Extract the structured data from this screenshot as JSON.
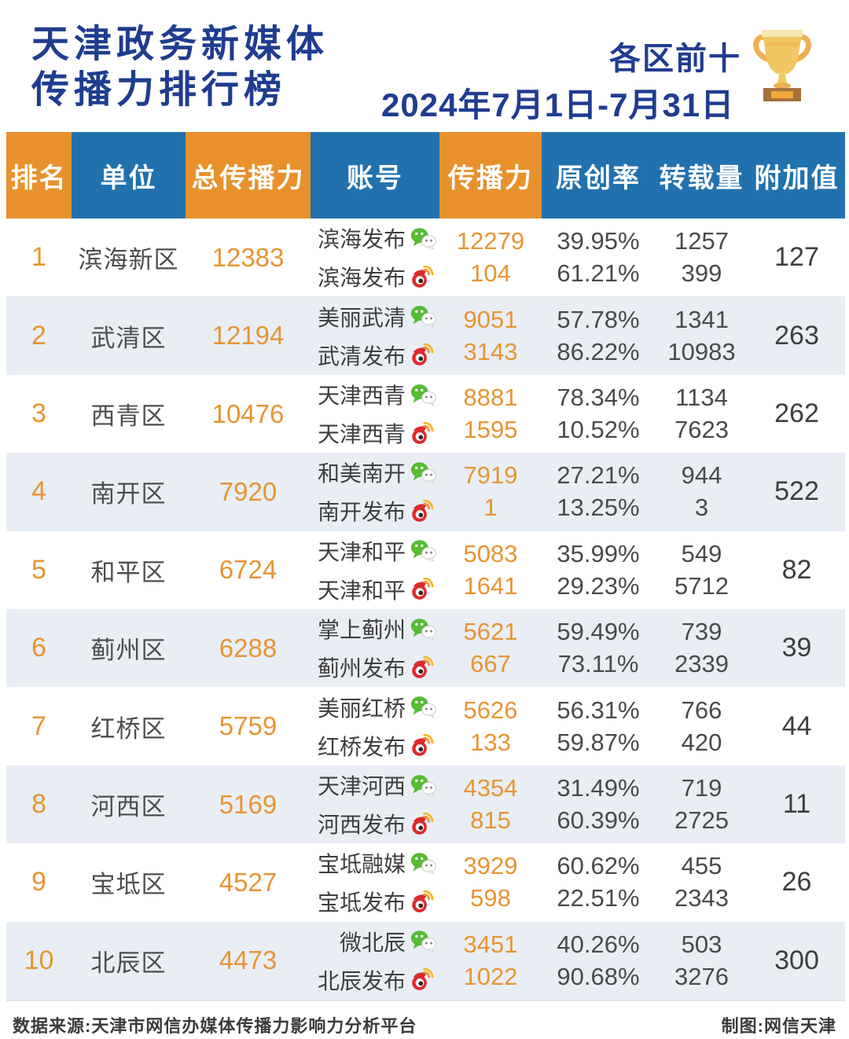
{
  "header": {
    "title_line1": "天津政务新媒体",
    "title_line2": "传播力排行榜",
    "badge": "各区前十",
    "date_range": "2024年7月1日-7月31日",
    "trophy_icon": "trophy-icon"
  },
  "chart_data": {
    "type": "table",
    "title": "天津政务新媒体传播力排行榜",
    "scope": "各区前十",
    "period": "2024年7月1日-7月31日",
    "columns": [
      "排名",
      "单位",
      "总传播力",
      "账号",
      "传播力",
      "原创率",
      "转载量",
      "附加值"
    ],
    "platform_icons": [
      "wechat-icon",
      "weibo-icon"
    ],
    "rows": [
      {
        "rank": "1",
        "unit": "滨海新区",
        "total": "12383",
        "added": "127",
        "accounts": [
          {
            "name": "滨海发布",
            "platform": "wechat",
            "power": "12279",
            "original_rate": "39.95%",
            "repost": "1257"
          },
          {
            "name": "滨海发布",
            "platform": "weibo",
            "power": "104",
            "original_rate": "61.21%",
            "repost": "399"
          }
        ]
      },
      {
        "rank": "2",
        "unit": "武清区",
        "total": "12194",
        "added": "263",
        "accounts": [
          {
            "name": "美丽武清",
            "platform": "wechat",
            "power": "9051",
            "original_rate": "57.78%",
            "repost": "1341"
          },
          {
            "name": "武清发布",
            "platform": "weibo",
            "power": "3143",
            "original_rate": "86.22%",
            "repost": "10983"
          }
        ]
      },
      {
        "rank": "3",
        "unit": "西青区",
        "total": "10476",
        "added": "262",
        "accounts": [
          {
            "name": "天津西青",
            "platform": "wechat",
            "power": "8881",
            "original_rate": "78.34%",
            "repost": "1134"
          },
          {
            "name": "天津西青",
            "platform": "weibo",
            "power": "1595",
            "original_rate": "10.52%",
            "repost": "7623"
          }
        ]
      },
      {
        "rank": "4",
        "unit": "南开区",
        "total": "7920",
        "added": "522",
        "accounts": [
          {
            "name": "和美南开",
            "platform": "wechat",
            "power": "7919",
            "original_rate": "27.21%",
            "repost": "944"
          },
          {
            "name": "南开发布",
            "platform": "weibo",
            "power": "1",
            "original_rate": "13.25%",
            "repost": "3"
          }
        ]
      },
      {
        "rank": "5",
        "unit": "和平区",
        "total": "6724",
        "added": "82",
        "accounts": [
          {
            "name": "天津和平",
            "platform": "wechat",
            "power": "5083",
            "original_rate": "35.99%",
            "repost": "549"
          },
          {
            "name": "天津和平",
            "platform": "weibo",
            "power": "1641",
            "original_rate": "29.23%",
            "repost": "5712"
          }
        ]
      },
      {
        "rank": "6",
        "unit": "蓟州区",
        "total": "6288",
        "added": "39",
        "accounts": [
          {
            "name": "掌上蓟州",
            "platform": "wechat",
            "power": "5621",
            "original_rate": "59.49%",
            "repost": "739"
          },
          {
            "name": "蓟州发布",
            "platform": "weibo",
            "power": "667",
            "original_rate": "73.11%",
            "repost": "2339"
          }
        ]
      },
      {
        "rank": "7",
        "unit": "红桥区",
        "total": "5759",
        "added": "44",
        "accounts": [
          {
            "name": "美丽红桥",
            "platform": "wechat",
            "power": "5626",
            "original_rate": "56.31%",
            "repost": "766"
          },
          {
            "name": "红桥发布",
            "platform": "weibo",
            "power": "133",
            "original_rate": "59.87%",
            "repost": "420"
          }
        ]
      },
      {
        "rank": "8",
        "unit": "河西区",
        "total": "5169",
        "added": "11",
        "accounts": [
          {
            "name": "天津河西",
            "platform": "wechat",
            "power": "4354",
            "original_rate": "31.49%",
            "repost": "719"
          },
          {
            "name": "河西发布",
            "platform": "weibo",
            "power": "815",
            "original_rate": "60.39%",
            "repost": "2725"
          }
        ]
      },
      {
        "rank": "9",
        "unit": "宝坻区",
        "total": "4527",
        "added": "26",
        "accounts": [
          {
            "name": "宝坻融媒",
            "platform": "wechat",
            "power": "3929",
            "original_rate": "60.62%",
            "repost": "455"
          },
          {
            "name": "宝坻发布",
            "platform": "weibo",
            "power": "598",
            "original_rate": "22.51%",
            "repost": "2343"
          }
        ]
      },
      {
        "rank": "10",
        "unit": "北辰区",
        "total": "4473",
        "added": "300",
        "accounts": [
          {
            "name": "微北辰",
            "platform": "wechat",
            "power": "3451",
            "original_rate": "40.26%",
            "repost": "503"
          },
          {
            "name": "北辰发布",
            "platform": "weibo",
            "power": "1022",
            "original_rate": "90.68%",
            "repost": "3276"
          }
        ]
      }
    ]
  },
  "footer": {
    "source": "数据来源:天津市网信办媒体传播力影响力分析平台",
    "credit": "制图:网信天津"
  },
  "colors": {
    "header_orange": "#E8912C",
    "header_blue": "#2171AE",
    "title_navy": "#1F3C90",
    "row_alt_bg": "#E9EEF5",
    "number_orange": "#E79434",
    "text_dark": "#4A4A4C",
    "wechat_green": "#57BB35",
    "weibo_red": "#DD2A2E",
    "trophy_gold": "#F2C763"
  }
}
